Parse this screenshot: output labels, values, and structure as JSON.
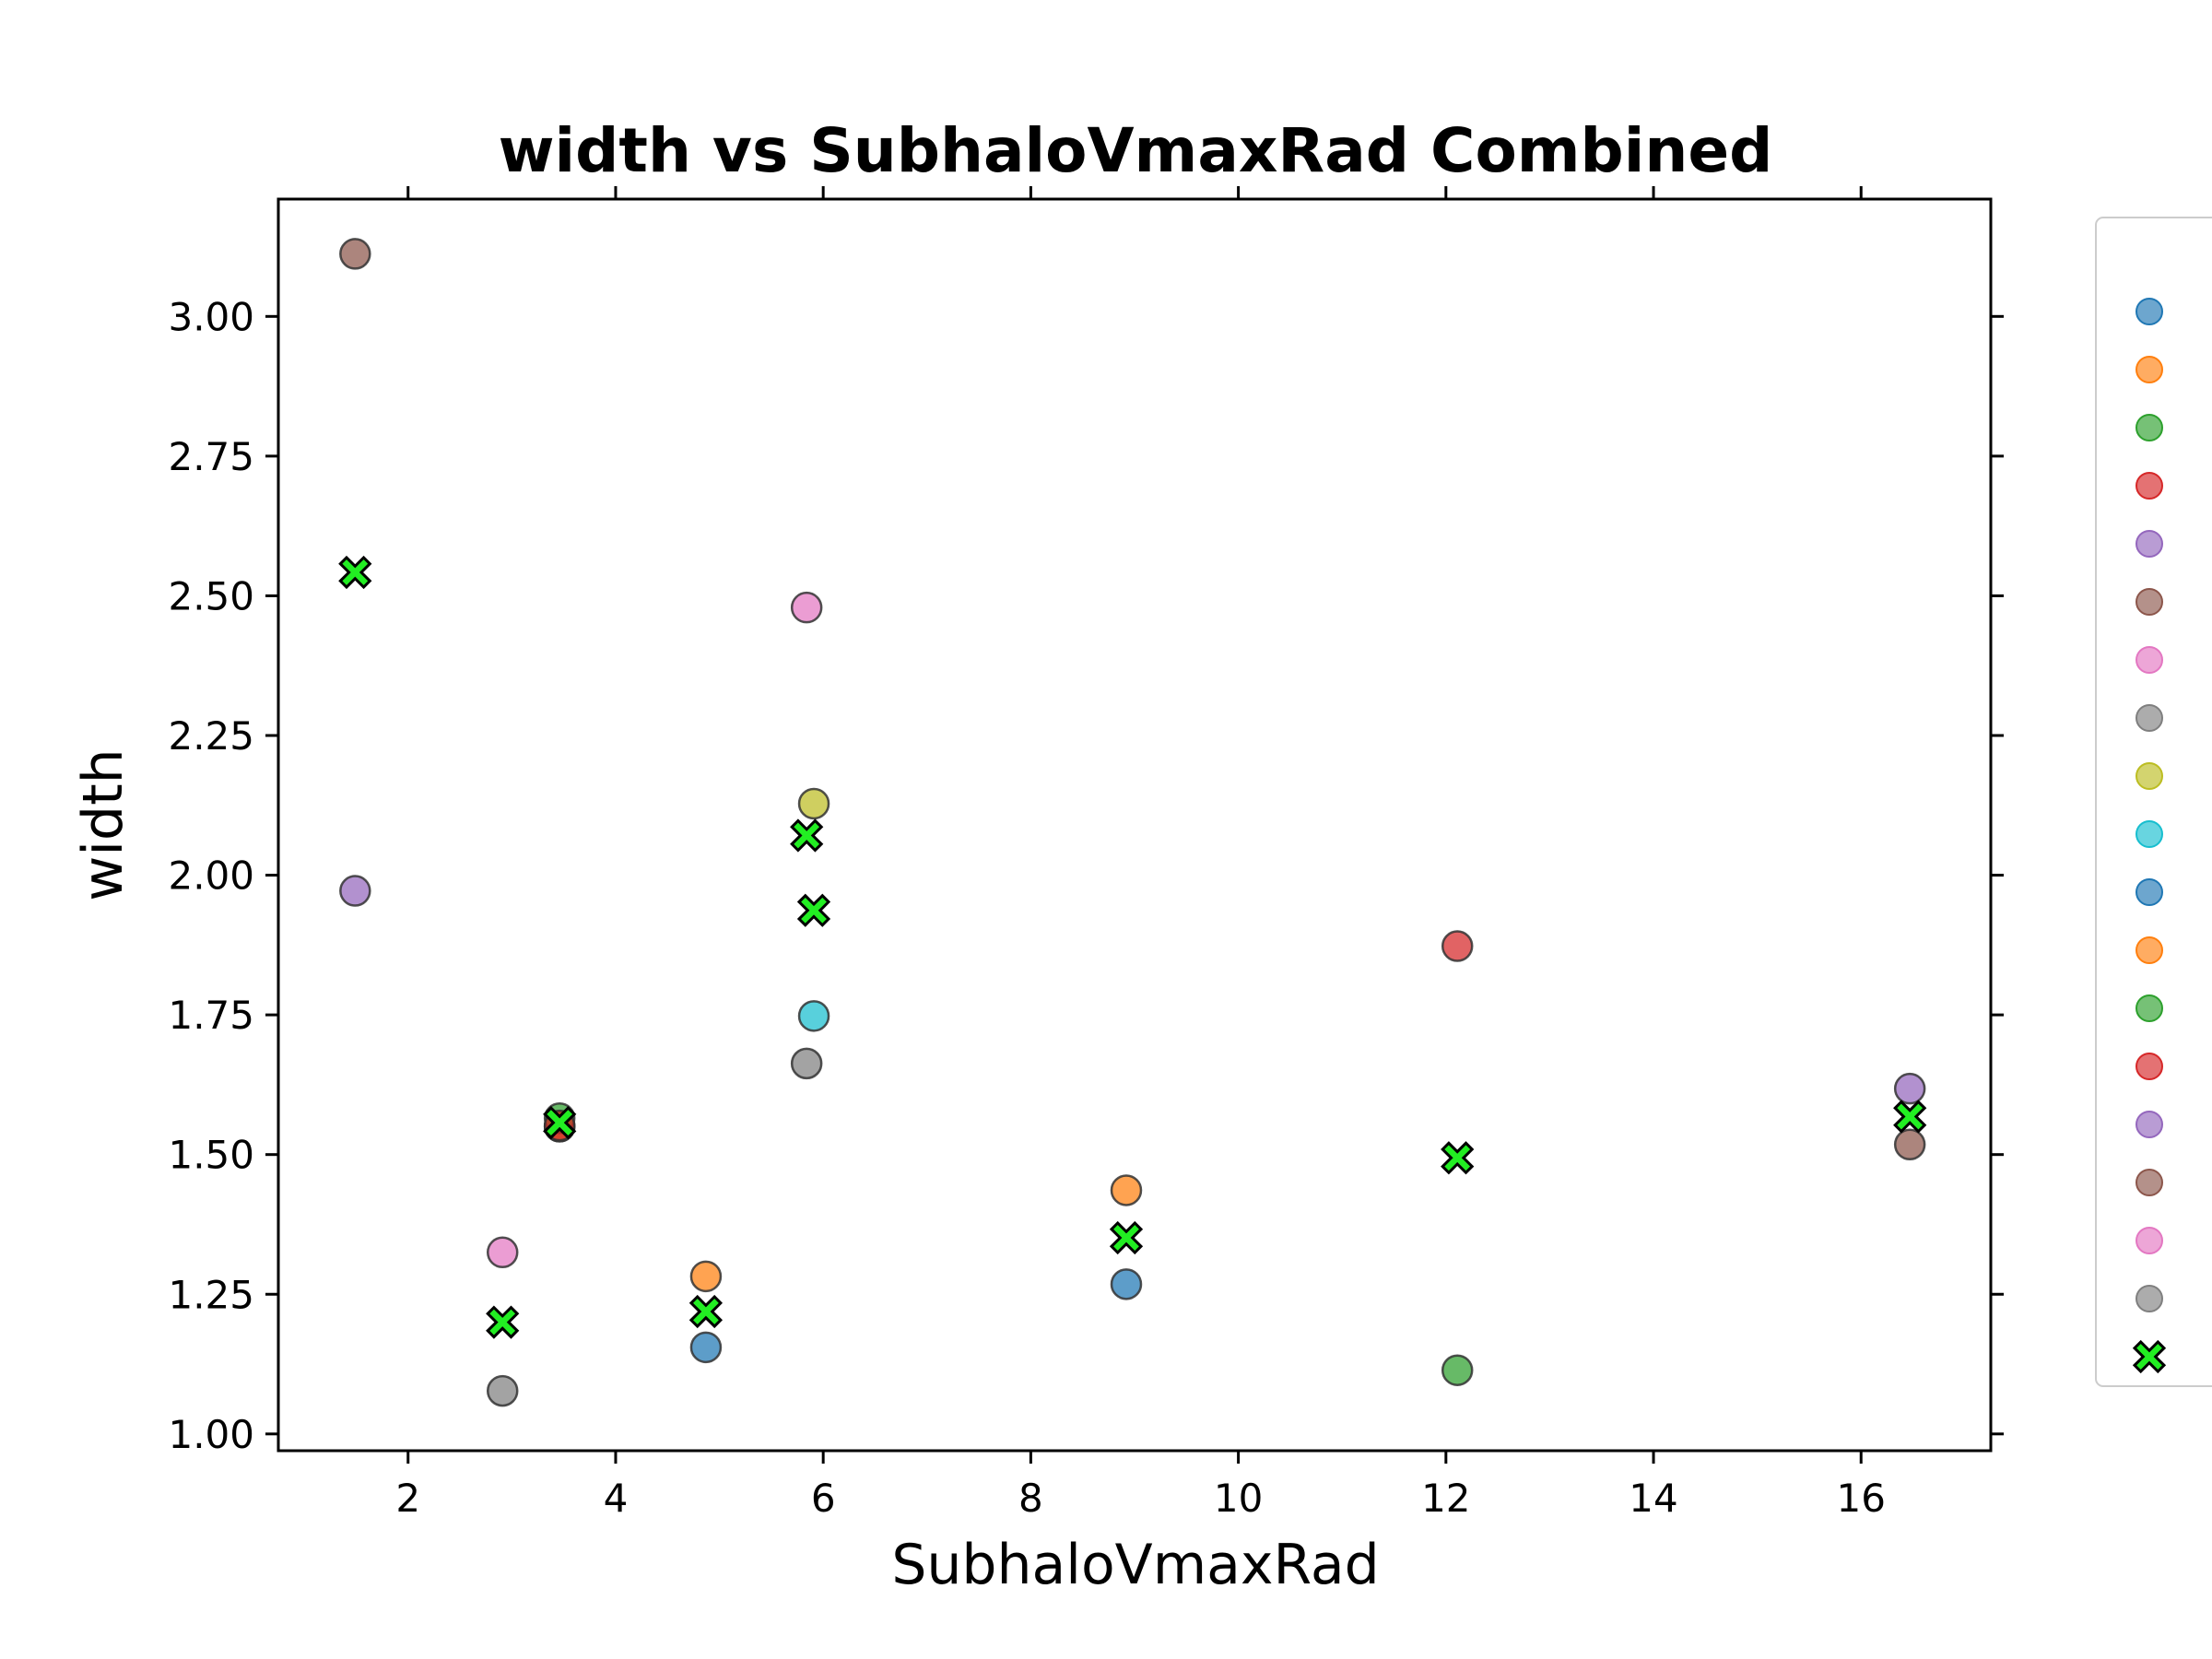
{
  "chart_data": {
    "type": "scatter",
    "title": "width vs SubhaloVmaxRad Combined",
    "xlabel": "SubhaloVmaxRad",
    "ylabel": "width",
    "xlim": [
      0.75,
      17.25
    ],
    "ylim": [
      0.97,
      3.21
    ],
    "xticks": [
      2,
      4,
      6,
      8,
      10,
      12,
      14,
      16
    ],
    "yticks": [
      1.0,
      1.25,
      1.5,
      1.75,
      2.0,
      2.25,
      2.5,
      2.75,
      3.0
    ],
    "ytick_labels": [
      "1.00",
      "1.25",
      "1.50",
      "1.75",
      "2.00",
      "2.25",
      "2.50",
      "2.75",
      "3.00"
    ],
    "grid": false,
    "legend_position": "right, outside plot",
    "series": [
      {
        "color": "#1f77b4",
        "marker": "circle",
        "points": [
          [
            4.87,
            1.155
          ],
          [
            8.92,
            1.268
          ],
          [
            3.46,
            1.55
          ]
        ]
      },
      {
        "color": "#ff7f0e",
        "marker": "circle",
        "points": [
          [
            4.87,
            1.282
          ],
          [
            8.92,
            1.436
          ],
          [
            3.46,
            1.55
          ]
        ]
      },
      {
        "color": "#2ca02c",
        "marker": "circle",
        "points": [
          [
            12.11,
            1.114
          ],
          [
            3.46,
            1.565
          ]
        ]
      },
      {
        "color": "#d62728",
        "marker": "circle",
        "points": [
          [
            12.11,
            1.873
          ],
          [
            3.46,
            1.552
          ]
        ]
      },
      {
        "color": "#9467bd",
        "marker": "circle",
        "points": [
          [
            1.49,
            1.972
          ],
          [
            16.47,
            1.618
          ]
        ]
      },
      {
        "color": "#8c564b",
        "marker": "circle",
        "points": [
          [
            1.49,
            3.112
          ],
          [
            16.47,
            1.518
          ]
        ]
      },
      {
        "color": "#e377c2",
        "marker": "circle",
        "points": [
          [
            2.91,
            1.325
          ],
          [
            5.84,
            2.479
          ]
        ]
      },
      {
        "color": "#7f7f7f",
        "marker": "circle",
        "points": [
          [
            2.91,
            1.077
          ],
          [
            5.84,
            1.663
          ]
        ]
      },
      {
        "color": "#bcbd22",
        "marker": "circle",
        "points": [
          [
            5.91,
            2.128
          ]
        ]
      },
      {
        "color": "#17becf",
        "marker": "circle",
        "points": [
          [
            5.91,
            1.748
          ]
        ]
      },
      {
        "color": "#1f77b4",
        "marker": "circle",
        "points": []
      },
      {
        "color": "#ff7f0e",
        "marker": "circle",
        "points": []
      },
      {
        "color": "#2ca02c",
        "marker": "circle",
        "points": []
      },
      {
        "color": "#d62728",
        "marker": "circle",
        "points": []
      },
      {
        "color": "#9467bd",
        "marker": "circle",
        "points": []
      },
      {
        "color": "#8c564b",
        "marker": "circle",
        "points": []
      },
      {
        "color": "#e377c2",
        "marker": "circle",
        "points": []
      },
      {
        "color": "#7f7f7f",
        "marker": "circle",
        "points": []
      },
      {
        "color": "#22ee22",
        "marker": "x-filled",
        "points": [
          [
            1.49,
            2.542
          ],
          [
            2.91,
            1.2
          ],
          [
            3.46,
            1.557
          ],
          [
            4.87,
            1.219
          ],
          [
            5.84,
            2.071
          ],
          [
            5.91,
            1.937
          ],
          [
            8.92,
            1.351
          ],
          [
            12.11,
            1.494
          ],
          [
            16.47,
            1.568
          ]
        ]
      }
    ]
  }
}
